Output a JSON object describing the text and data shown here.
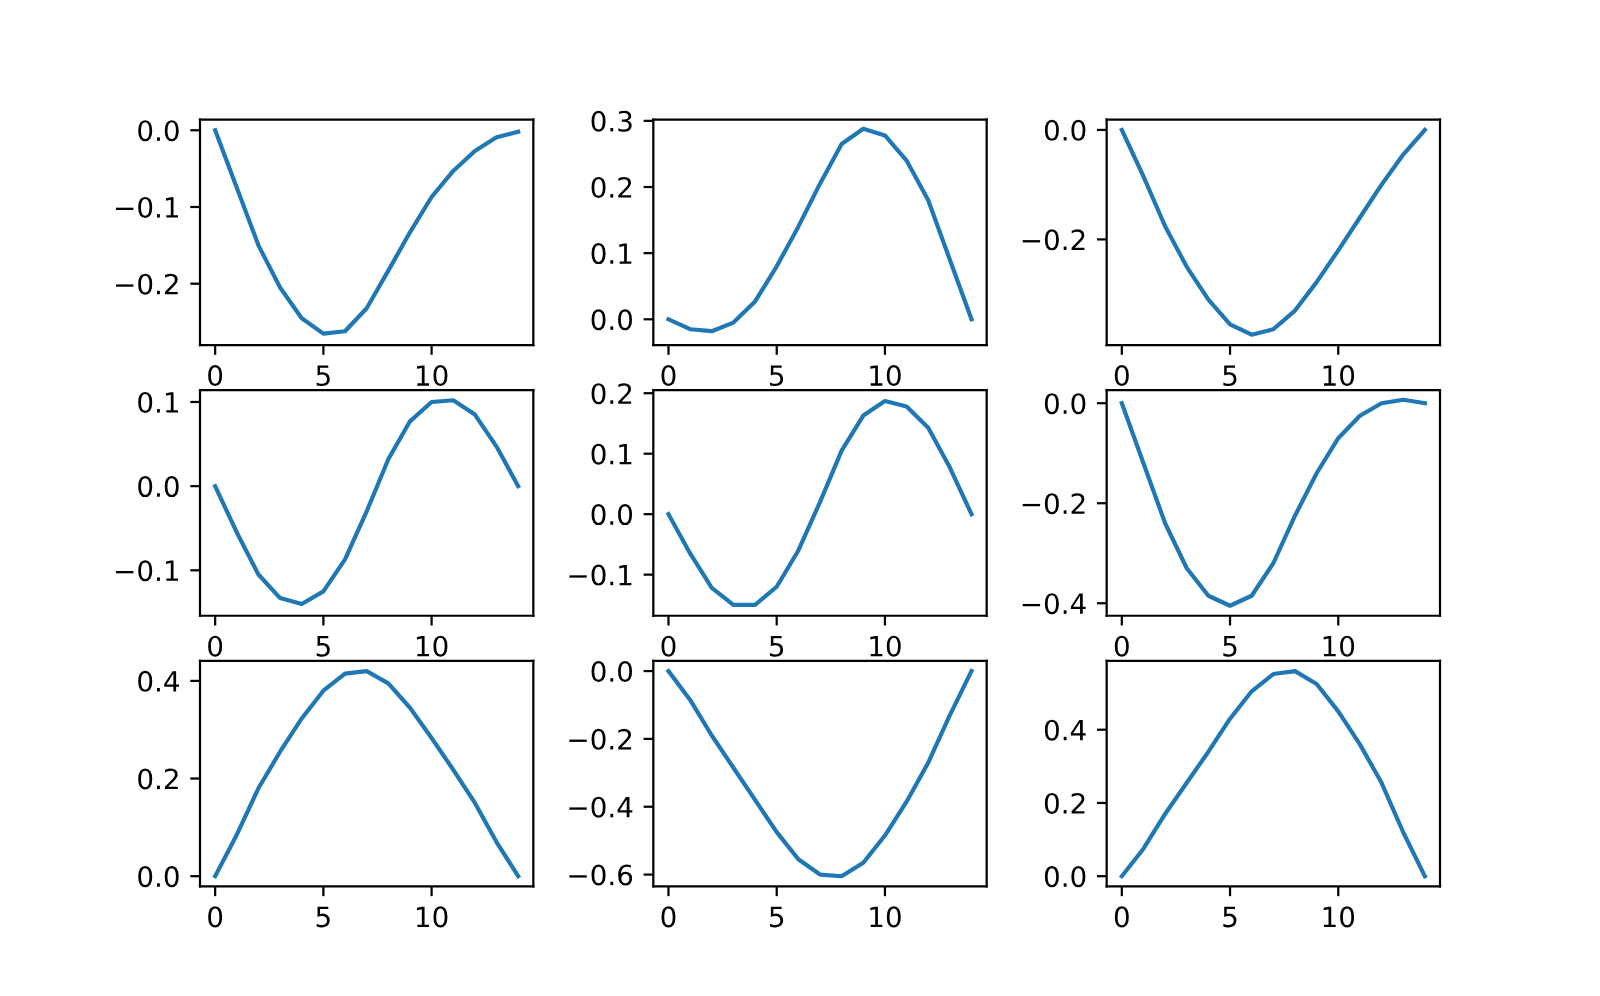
{
  "chart_data": [
    {
      "type": "line",
      "x": [
        0,
        1,
        2,
        3,
        4,
        5,
        6,
        7,
        8,
        9,
        10,
        11,
        12,
        13,
        14
      ],
      "color": "#1f77b4",
      "values": [
        0,
        -0.075,
        -0.15,
        -0.205,
        -0.245,
        -0.265,
        -0.262,
        -0.232,
        -0.183,
        -0.133,
        -0.087,
        -0.053,
        -0.027,
        -0.009,
        -0.002
      ],
      "xlim": [
        -0.7,
        14.7
      ],
      "xticks": [
        0,
        5,
        10
      ],
      "ylim": [
        -0.28,
        0.014
      ],
      "yticks": [
        {
          "value": 0,
          "label": "0.0"
        },
        {
          "value": -0.1,
          "label": "−0.1"
        },
        {
          "value": -0.2,
          "label": "−0.2"
        }
      ]
    },
    {
      "type": "line",
      "x": [
        0,
        1,
        2,
        3,
        4,
        5,
        6,
        7,
        8,
        9,
        10,
        11,
        12,
        13,
        14
      ],
      "color": "#1f77b4",
      "values": [
        0,
        -0.015,
        -0.018,
        -0.005,
        0.027,
        0.08,
        0.14,
        0.205,
        0.265,
        0.288,
        0.278,
        0.24,
        0.18,
        0.09,
        0
      ],
      "xlim": [
        -0.7,
        14.7
      ],
      "xticks": [
        0,
        5,
        10
      ],
      "ylim": [
        -0.039,
        0.302
      ],
      "yticks": [
        {
          "value": 0,
          "label": "0.0"
        },
        {
          "value": 0.1,
          "label": "0.1"
        },
        {
          "value": 0.2,
          "label": "0.2"
        },
        {
          "value": 0.3,
          "label": "0.3"
        }
      ]
    },
    {
      "type": "line",
      "x": [
        0,
        1,
        2,
        3,
        4,
        5,
        6,
        7,
        8,
        9,
        10,
        11,
        12,
        13,
        14
      ],
      "color": "#1f77b4",
      "values": [
        0,
        -0.085,
        -0.176,
        -0.25,
        -0.31,
        -0.355,
        -0.374,
        -0.364,
        -0.33,
        -0.278,
        -0.22,
        -0.16,
        -0.1,
        -0.045,
        0
      ],
      "xlim": [
        -0.7,
        14.7
      ],
      "xticks": [
        0,
        5,
        10
      ],
      "ylim": [
        -0.393,
        0.019
      ],
      "yticks": [
        {
          "value": 0,
          "label": "0.0"
        },
        {
          "value": -0.2,
          "label": "−0.2"
        }
      ]
    },
    {
      "type": "line",
      "x": [
        0,
        1,
        2,
        3,
        4,
        5,
        6,
        7,
        8,
        9,
        10,
        11,
        12,
        13,
        14
      ],
      "color": "#1f77b4",
      "values": [
        0,
        -0.055,
        -0.105,
        -0.133,
        -0.14,
        -0.125,
        -0.087,
        -0.03,
        0.032,
        0.077,
        0.1,
        0.102,
        0.085,
        0.047,
        0
      ],
      "xlim": [
        -0.7,
        14.7
      ],
      "xticks": [
        0,
        5,
        10
      ],
      "ylim": [
        -0.154,
        0.114
      ],
      "yticks": [
        {
          "value": -0.1,
          "label": "−0.1"
        },
        {
          "value": 0,
          "label": "0.0"
        },
        {
          "value": 0.1,
          "label": "0.1"
        }
      ]
    },
    {
      "type": "line",
      "x": [
        0,
        1,
        2,
        3,
        4,
        5,
        6,
        7,
        8,
        9,
        10,
        11,
        12,
        13,
        14
      ],
      "color": "#1f77b4",
      "values": [
        0,
        -0.065,
        -0.122,
        -0.15,
        -0.15,
        -0.12,
        -0.06,
        0.02,
        0.105,
        0.163,
        0.187,
        0.178,
        0.143,
        0.077,
        0
      ],
      "xlim": [
        -0.7,
        14.7
      ],
      "xticks": [
        0,
        5,
        10
      ],
      "ylim": [
        -0.168,
        0.205
      ],
      "yticks": [
        {
          "value": -0.1,
          "label": "−0.1"
        },
        {
          "value": 0,
          "label": "0.0"
        },
        {
          "value": 0.1,
          "label": "0.1"
        },
        {
          "value": 0.2,
          "label": "0.2"
        }
      ]
    },
    {
      "type": "line",
      "x": [
        0,
        1,
        2,
        3,
        4,
        5,
        6,
        7,
        8,
        9,
        10,
        11,
        12,
        13,
        14
      ],
      "color": "#1f77b4",
      "values": [
        0,
        -0.12,
        -0.24,
        -0.33,
        -0.385,
        -0.405,
        -0.385,
        -0.32,
        -0.225,
        -0.14,
        -0.07,
        -0.025,
        0,
        0.007,
        0
      ],
      "xlim": [
        -0.7,
        14.7
      ],
      "xticks": [
        0,
        5,
        10
      ],
      "ylim": [
        -0.425,
        0.026
      ],
      "yticks": [
        {
          "value": -0.4,
          "label": "−0.4"
        },
        {
          "value": -0.2,
          "label": "−0.2"
        },
        {
          "value": 0,
          "label": "0.0"
        }
      ]
    },
    {
      "type": "line",
      "x": [
        0,
        1,
        2,
        3,
        4,
        5,
        6,
        7,
        8,
        9,
        10,
        11,
        12,
        13,
        14
      ],
      "color": "#1f77b4",
      "values": [
        0,
        0.085,
        0.18,
        0.255,
        0.323,
        0.38,
        0.415,
        0.42,
        0.395,
        0.345,
        0.283,
        0.218,
        0.15,
        0.07,
        0
      ],
      "xlim": [
        -0.7,
        14.7
      ],
      "xticks": [
        0,
        5,
        10
      ],
      "ylim": [
        -0.021,
        0.441
      ],
      "yticks": [
        {
          "value": 0,
          "label": "0.0"
        },
        {
          "value": 0.2,
          "label": "0.2"
        },
        {
          "value": 0.4,
          "label": "0.4"
        }
      ]
    },
    {
      "type": "line",
      "x": [
        0,
        1,
        2,
        3,
        4,
        5,
        6,
        7,
        8,
        9,
        10,
        11,
        12,
        13,
        14
      ],
      "color": "#1f77b4",
      "values": [
        0,
        -0.085,
        -0.19,
        -0.285,
        -0.38,
        -0.475,
        -0.555,
        -0.6,
        -0.605,
        -0.565,
        -0.485,
        -0.385,
        -0.27,
        -0.13,
        0
      ],
      "xlim": [
        -0.7,
        14.7
      ],
      "xticks": [
        0,
        5,
        10
      ],
      "ylim": [
        -0.635,
        0.03
      ],
      "yticks": [
        {
          "value": -0.6,
          "label": "−0.6"
        },
        {
          "value": -0.4,
          "label": "−0.4"
        },
        {
          "value": -0.2,
          "label": "−0.2"
        },
        {
          "value": 0,
          "label": "0.0"
        }
      ]
    },
    {
      "type": "line",
      "x": [
        0,
        1,
        2,
        3,
        4,
        5,
        6,
        7,
        8,
        9,
        10,
        11,
        12,
        13,
        14
      ],
      "color": "#1f77b4",
      "values": [
        0,
        0.075,
        0.17,
        0.255,
        0.34,
        0.43,
        0.505,
        0.552,
        0.56,
        0.525,
        0.45,
        0.36,
        0.255,
        0.12,
        0
      ],
      "xlim": [
        -0.7,
        14.7
      ],
      "xticks": [
        0,
        5,
        10
      ],
      "ylim": [
        -0.028,
        0.588
      ],
      "yticks": [
        {
          "value": 0,
          "label": "0.0"
        },
        {
          "value": 0.2,
          "label": "0.2"
        },
        {
          "value": 0.4,
          "label": "0.4"
        }
      ]
    }
  ]
}
